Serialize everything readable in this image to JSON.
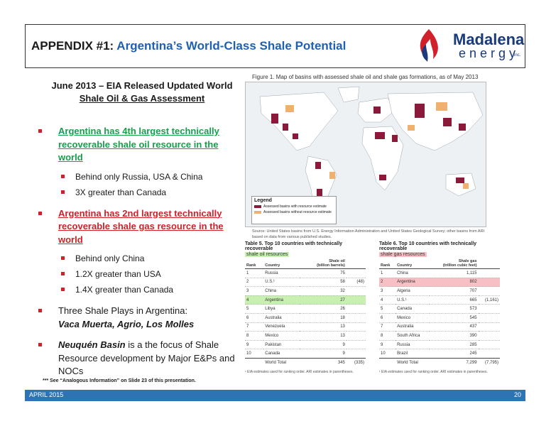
{
  "header": {
    "title_prefix": "APPENDIX #1: ",
    "title_main": "Argentina’s World-Class Shale Potential",
    "logo_word1": "Madalena",
    "logo_word2": "energy",
    "logo_inc": "inc."
  },
  "left": {
    "heading_line1": "June 2013 – EIA Released Updated World",
    "heading_line2": "Shale Oil & Gas Assessment",
    "bullet1": "Argentina has 4th largest technically recoverable shale oil resource in the world",
    "bullet1_sub": [
      "Behind only Russia, USA & China",
      "3X greater than Canada"
    ],
    "bullet2": "Argentina has 2nd largest technically recoverable shale gas resource in the world",
    "bullet2_sub": [
      "Behind only China",
      "1.2X greater than USA",
      "1.4X greater than Canada"
    ],
    "bullet3_line1": "Three Shale Plays in Argentina:",
    "bullet3_line2": "Vaca Muerta, Agrio, Los Molles",
    "bullet4_bold": "Neuquén Basin",
    "bullet4_rest": " is a the focus of Shale Resource development by Major E&Ps and NOCs",
    "footnote": "*** See “Analogous Information” on Slide 23 of this presentation."
  },
  "figure": {
    "caption": "Figure 1. Map of basins with assessed shale oil and shale gas formations, as of May 2013",
    "legend_title": "Legend",
    "legend_item1": "Assessed basins with resource estimate",
    "legend_item2": "Assessed basins without resource estimate",
    "source": "Source: United States basins from U.S. Energy Information Administration and United States Geological Survey; other basins from ARI based on data from various published studies.",
    "colors": {
      "with_estimate": "#8b1a3a",
      "without_estimate": "#f0b070",
      "land": "#ffffff",
      "water": "#eef1f4"
    }
  },
  "table5": {
    "title_line1": "Table 5. Top 10 countries with technically recoverable",
    "title_line2": "shale oil resources",
    "col_rank": "Rank",
    "col_country": "Country",
    "col_value_line1": "Shale oil",
    "col_value_line2": "(billion barrels)",
    "rows": [
      {
        "rank": "1",
        "country": "Russia",
        "value": "75",
        "extra": ""
      },
      {
        "rank": "2",
        "country": "U.S.¹",
        "value": "58",
        "extra": "(48)"
      },
      {
        "rank": "3",
        "country": "China",
        "value": "32",
        "extra": ""
      },
      {
        "rank": "4",
        "country": "Argentina",
        "value": "27",
        "extra": ""
      },
      {
        "rank": "5",
        "country": "Libya",
        "value": "26",
        "extra": ""
      },
      {
        "rank": "6",
        "country": "Australia",
        "value": "18",
        "extra": ""
      },
      {
        "rank": "7",
        "country": "Venezuela",
        "value": "13",
        "extra": ""
      },
      {
        "rank": "8",
        "country": "Mexico",
        "value": "13",
        "extra": ""
      },
      {
        "rank": "9",
        "country": "Pakistan",
        "value": "9",
        "extra": ""
      },
      {
        "rank": "10",
        "country": "Canada",
        "value": "9",
        "extra": ""
      }
    ],
    "total_label": "World Total",
    "total_value": "345",
    "total_extra": "(335)",
    "footnote": "¹ EIA estimates used for ranking order. ARI estimates in parentheses."
  },
  "table6": {
    "title_line1": "Table 6. Top 10 countries with technically recoverable",
    "title_line2": "shale gas resources",
    "col_rank": "Rank",
    "col_country": "Country",
    "col_value_line1": "Shale gas",
    "col_value_line2": "(trillion cubic feet)",
    "rows": [
      {
        "rank": "1",
        "country": "China",
        "value": "1,115",
        "extra": ""
      },
      {
        "rank": "2",
        "country": "Argentina",
        "value": "802",
        "extra": ""
      },
      {
        "rank": "3",
        "country": "Algeria",
        "value": "707",
        "extra": ""
      },
      {
        "rank": "4",
        "country": "U.S.¹",
        "value": "665",
        "extra": "(1,161)"
      },
      {
        "rank": "5",
        "country": "Canada",
        "value": "573",
        "extra": ""
      },
      {
        "rank": "6",
        "country": "Mexico",
        "value": "545",
        "extra": ""
      },
      {
        "rank": "7",
        "country": "Australia",
        "value": "437",
        "extra": ""
      },
      {
        "rank": "8",
        "country": "South Africa",
        "value": "390",
        "extra": ""
      },
      {
        "rank": "9",
        "country": "Russia",
        "value": "285",
        "extra": ""
      },
      {
        "rank": "10",
        "country": "Brazil",
        "value": "245",
        "extra": ""
      }
    ],
    "total_label": "World Total",
    "total_value": "7,299",
    "total_extra": "(7,795)",
    "footnote": "¹ EIA estimates used for ranking order. ARI estimates in parentheses."
  },
  "highlight": {
    "oil_row": "#c8f0b0",
    "gas_row": "#f6c0c4"
  },
  "footer": {
    "left": "APRIL 2015",
    "right": "20"
  }
}
